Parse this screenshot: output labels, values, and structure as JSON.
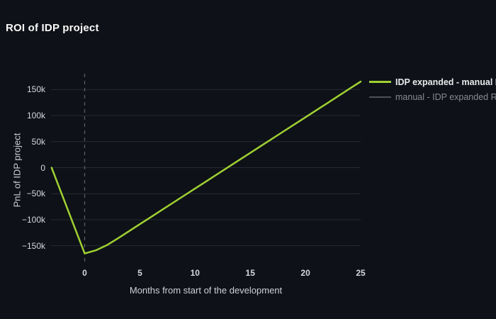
{
  "page": {
    "background_color": "#0e1117"
  },
  "chart_data": {
    "type": "line",
    "title": "ROI of IDP project",
    "xlabel": "Months from start of the development",
    "ylabel": "PnL of IDP project",
    "x_range": [
      -3.05,
      25
    ],
    "y_range": [
      -180500,
      180500
    ],
    "grid": "horizontal",
    "grid_color": "#262a33",
    "legend_position": "top-right",
    "x_ticks": [
      {
        "value": 0,
        "label": "0"
      },
      {
        "value": 5,
        "label": "5"
      },
      {
        "value": 10,
        "label": "10"
      },
      {
        "value": 15,
        "label": "15"
      },
      {
        "value": 20,
        "label": "20"
      },
      {
        "value": 25,
        "label": "25"
      }
    ],
    "y_ticks": [
      {
        "value": 150000,
        "label": "150k"
      },
      {
        "value": 100000,
        "label": "100k"
      },
      {
        "value": 50000,
        "label": "50k"
      },
      {
        "value": 0,
        "label": "0"
      },
      {
        "value": -50000,
        "label": "−50k"
      },
      {
        "value": -100000,
        "label": "−100k"
      },
      {
        "value": -150000,
        "label": "−150k"
      }
    ],
    "reference_line": {
      "x": 0,
      "style": "dashed",
      "color": "#5d6168"
    },
    "series": [
      {
        "name": "IDP expanded - manual ROI",
        "color": "#9fd032",
        "visible": true,
        "points": [
          [
            -3,
            0
          ],
          [
            -2,
            -55000
          ],
          [
            -1,
            -110000
          ],
          [
            0,
            -165000
          ],
          [
            1,
            -159000
          ],
          [
            2,
            -149000
          ],
          [
            3,
            -136000
          ],
          [
            4,
            -122300
          ],
          [
            5,
            -108600
          ],
          [
            6,
            -94900
          ],
          [
            7,
            -81200
          ],
          [
            8,
            -67500
          ],
          [
            9,
            -53800
          ],
          [
            10,
            -40100
          ],
          [
            11,
            -26400
          ],
          [
            12,
            -12700
          ],
          [
            13,
            1000
          ],
          [
            14,
            14700
          ],
          [
            15,
            28400
          ],
          [
            16,
            42100
          ],
          [
            17,
            55800
          ],
          [
            18,
            69500
          ],
          [
            19,
            83200
          ],
          [
            20,
            96900
          ],
          [
            21,
            110600
          ],
          [
            22,
            124300
          ],
          [
            23,
            138000
          ],
          [
            24,
            151700
          ],
          [
            25,
            165400
          ]
        ]
      },
      {
        "name": "manual - IDP expanded ROI",
        "color": "#4e5258",
        "visible": false,
        "points": []
      }
    ]
  }
}
